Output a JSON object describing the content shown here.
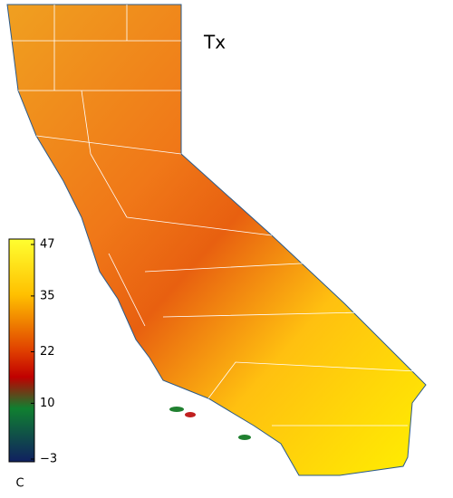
{
  "title": "Tx",
  "colorbar": {
    "lim": [
      -3,
      47
    ],
    "ticks": [
      {
        "value": -3,
        "label": "−3"
      },
      10,
      22,
      35,
      47
    ],
    "unit": "C"
  }
}
